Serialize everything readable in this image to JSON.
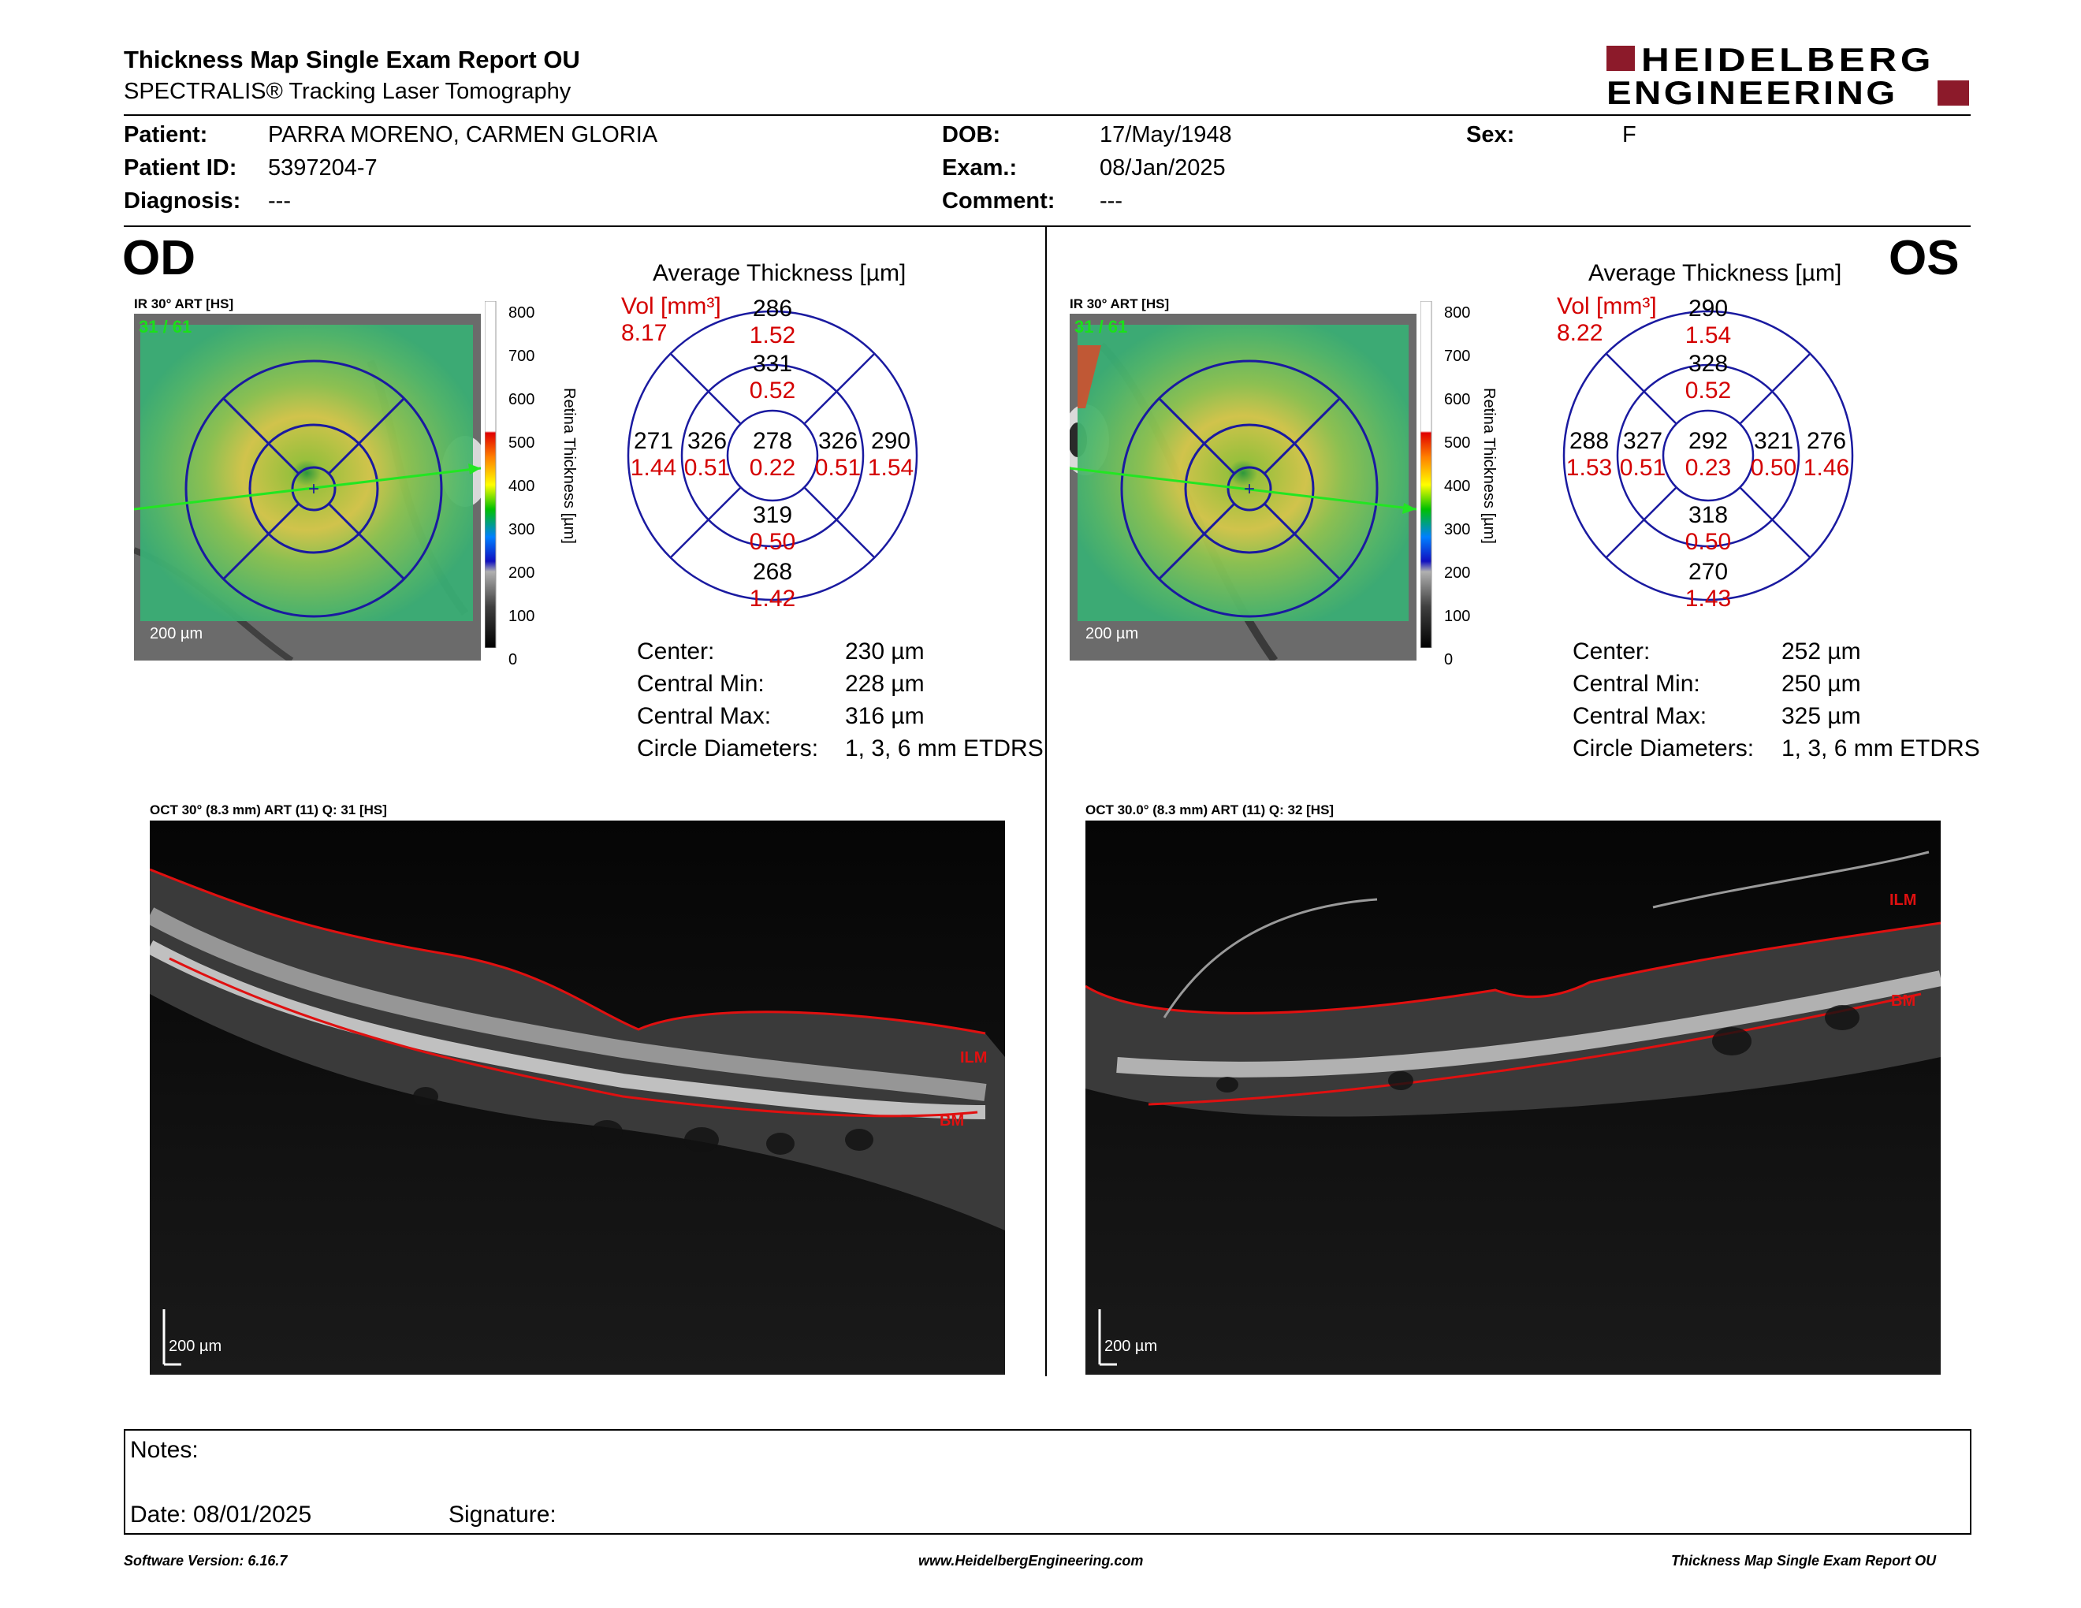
{
  "report": {
    "title": "Thickness Map Single Exam Report OU",
    "subtitle": "SPECTRALIS® Tracking Laser Tomography",
    "logo_line1": "HEIDELBERG",
    "logo_line2": "ENGINEERING"
  },
  "patient": {
    "patient_label": "Patient:",
    "patient_value": "PARRA MORENO, CARMEN GLORIA",
    "id_label": "Patient ID:",
    "id_value": "5397204-7",
    "diagnosis_label": "Diagnosis:",
    "diagnosis_value": "---",
    "dob_label": "DOB:",
    "dob_value": "17/May/1948",
    "exam_label": "Exam.:",
    "exam_value": "08/Jan/2025",
    "comment_label": "Comment:",
    "comment_value": "---",
    "sex_label": "Sex:",
    "sex_value": "F"
  },
  "colorbar": {
    "ticks": [
      "800",
      "700",
      "600",
      "500",
      "400",
      "300",
      "200",
      "100",
      "0"
    ],
    "label": "Retina Thickness [µm]"
  },
  "od": {
    "eye_label": "OD",
    "fundus_label": "IR 30° ART [HS]",
    "fundus_quality": "31 / 61",
    "scale_label": "200 µm",
    "avg_title": "Average Thickness [µm]",
    "vol_label": "Vol [mm³]",
    "vol_total": "8.17",
    "sectors": {
      "outer_top": [
        "286",
        "1.52"
      ],
      "inner_top": [
        "331",
        "0.52"
      ],
      "outer_left": [
        "271",
        "1.44"
      ],
      "inner_left": [
        "326",
        "0.51"
      ],
      "center": [
        "278",
        "0.22"
      ],
      "inner_right": [
        "326",
        "0.51"
      ],
      "outer_right": [
        "290",
        "1.54"
      ],
      "inner_bottom": [
        "319",
        "0.50"
      ],
      "outer_bottom": [
        "268",
        "1.42"
      ]
    },
    "stats": {
      "center_label": "Center:",
      "center_value": "230 µm",
      "min_label": "Central Min:",
      "min_value": "228 µm",
      "max_label": "Central Max:",
      "max_value": "316 µm",
      "diam_label": "Circle Diameters:",
      "diam_value": "1, 3, 6 mm ETDRS"
    },
    "oct_label": "OCT 30° (8.3 mm) ART (11) Q: 31 [HS]",
    "oct_scale": "200 µm",
    "ilm": "ILM",
    "bm": "BM"
  },
  "os": {
    "eye_label": "OS",
    "fundus_label": "IR 30° ART [HS]",
    "fundus_quality": "31 / 61",
    "scale_label": "200 µm",
    "avg_title": "Average Thickness [µm]",
    "vol_label": "Vol [mm³]",
    "vol_total": "8.22",
    "sectors": {
      "outer_top": [
        "290",
        "1.54"
      ],
      "inner_top": [
        "328",
        "0.52"
      ],
      "outer_left": [
        "288",
        "1.53"
      ],
      "inner_left": [
        "327",
        "0.51"
      ],
      "center": [
        "292",
        "0.23"
      ],
      "inner_right": [
        "321",
        "0.50"
      ],
      "outer_right": [
        "276",
        "1.46"
      ],
      "inner_bottom": [
        "318",
        "0.50"
      ],
      "outer_bottom": [
        "270",
        "1.43"
      ]
    },
    "stats": {
      "center_label": "Center:",
      "center_value": "252 µm",
      "min_label": "Central Min:",
      "min_value": "250 µm",
      "max_label": "Central Max:",
      "max_value": "325 µm",
      "diam_label": "Circle Diameters:",
      "diam_value": "1, 3, 6 mm ETDRS"
    },
    "oct_label": "OCT 30.0° (8.3 mm) ART (11) Q: 32 [HS]",
    "oct_scale": "200 µm",
    "ilm": "ILM",
    "bm": "BM"
  },
  "notes": {
    "notes_label": "Notes:",
    "date_label": "Date: 08/01/2025",
    "signature_label": "Signature:"
  },
  "footer": {
    "software": "Software Version: 6.16.7",
    "website": "www.HeidelbergEngineering.com",
    "report_name": "Thickness Map Single Exam Report OU"
  },
  "colors": {
    "etdrs_blue": "#1a1aa0",
    "volume_red": "#d40000",
    "logo_red": "#8c1a2a",
    "seg_red": "#e01010"
  }
}
